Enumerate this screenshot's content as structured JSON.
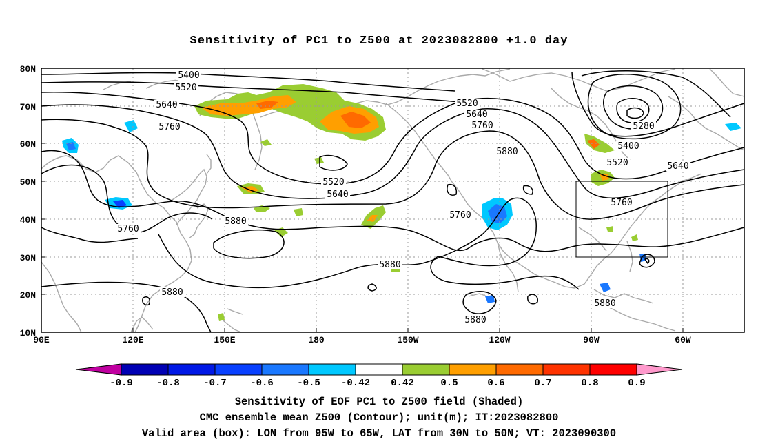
{
  "title": "Sensitivity of PC1 to Z500 at 2023082800 +1.0 day",
  "footer": {
    "line1": "Sensitivity of EOF PC1 to Z500 field (Shaded)",
    "line2": "CMC ensemble mean Z500 (Contour); unit(m); IT:2023082800",
    "line3": "Valid area (box): LON from 95W to 65W, LAT from 30N to 50N; VT: 2023090300"
  },
  "map": {
    "lon_range": [
      90,
      320
    ],
    "lat_range": [
      10,
      80
    ],
    "lat_ticks": [
      "80N",
      "70N",
      "60N",
      "50N",
      "40N",
      "30N",
      "20N",
      "10N"
    ],
    "lon_ticks": [
      "90E",
      "120E",
      "150E",
      "180",
      "150W",
      "120W",
      "90W",
      "60W"
    ],
    "valid_box": {
      "lon_west": "95W",
      "lon_east": "65W",
      "lat_south": "30N",
      "lat_north": "50N"
    },
    "contour_labels": [
      "5400",
      "5520",
      "5640",
      "5760",
      "5880",
      "5520",
      "5640",
      "5760",
      "5880",
      "5760",
      "5880",
      "5880",
      "5880",
      "5760",
      "5880",
      "5280",
      "5400",
      "5520",
      "5640",
      "5760",
      "5880",
      "5880",
      "5520",
      "5640",
      "5760"
    ]
  },
  "colorbar": {
    "labels": [
      "-0.9",
      "-0.8",
      "-0.7",
      "-0.6",
      "-0.5",
      "-0.42",
      "0.42",
      "0.5",
      "0.6",
      "0.7",
      "0.8",
      "0.9"
    ],
    "colors": [
      "#c000a0",
      "#0000b4",
      "#0018e6",
      "#0840ff",
      "#1a78ff",
      "#00c8ff",
      "#ffffff",
      "#9acd32",
      "#ff9f00",
      "#ff6a00",
      "#ff3300",
      "#ff0000",
      "#ff99cc"
    ]
  }
}
